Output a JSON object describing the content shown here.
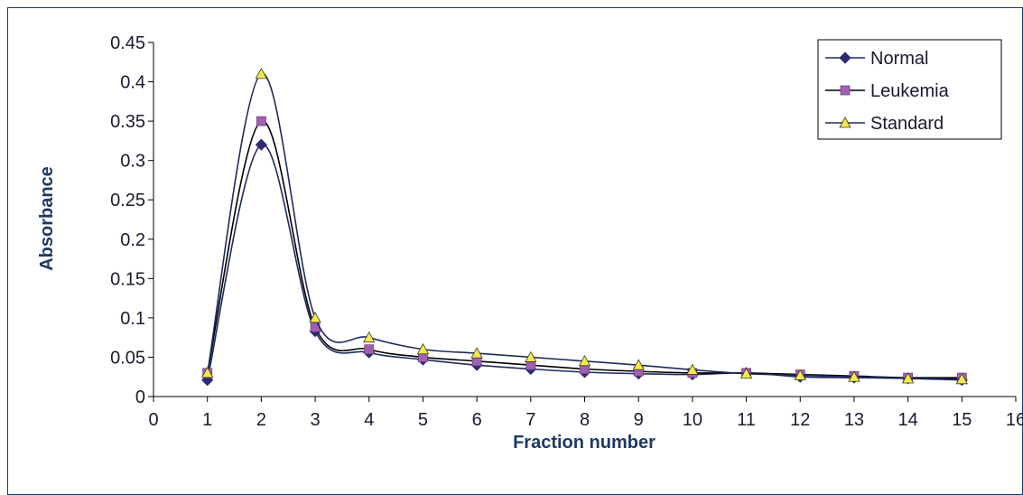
{
  "chart_data": {
    "type": "line",
    "title": "",
    "xlabel": "Fraction number",
    "ylabel": "Absorbance",
    "xlim": [
      0,
      16
    ],
    "ylim": [
      0,
      0.45
    ],
    "x_ticks": [
      0,
      1,
      2,
      3,
      4,
      5,
      6,
      7,
      8,
      9,
      10,
      11,
      12,
      13,
      14,
      15,
      16
    ],
    "y_ticks": [
      0,
      0.05,
      0.1,
      0.15,
      0.2,
      0.25,
      0.3,
      0.35,
      0.4,
      0.45
    ],
    "y_tick_labels": [
      "0",
      "0.05",
      "0.1",
      "0.15",
      "0.2",
      "0.25",
      "0.3",
      "0.35",
      "0.4",
      "0.45"
    ],
    "x_tick_labels": [
      "0",
      "1",
      "2",
      "3",
      "4",
      "5",
      "6",
      "7",
      "8",
      "9",
      "10",
      "11",
      "12",
      "13",
      "14",
      "15",
      "16"
    ],
    "grid": false,
    "legend_position": "top-right",
    "x": [
      1,
      2,
      3,
      4,
      5,
      6,
      7,
      8,
      9,
      10,
      11,
      12,
      13,
      14,
      15
    ],
    "series": [
      {
        "name": "Normal",
        "marker": "diamond",
        "marker_color": "#2e2a7a",
        "line_color": "#1f2a5c",
        "values": [
          0.021,
          0.32,
          0.083,
          0.056,
          0.047,
          0.04,
          0.035,
          0.031,
          0.029,
          0.028,
          0.03,
          0.025,
          0.024,
          0.023,
          0.021
        ]
      },
      {
        "name": "Leukemia",
        "marker": "square",
        "marker_color": "#a060b0",
        "line_color": "#000000",
        "values": [
          0.03,
          0.35,
          0.088,
          0.06,
          0.05,
          0.045,
          0.04,
          0.035,
          0.032,
          0.03,
          0.03,
          0.028,
          0.026,
          0.024,
          0.024
        ]
      },
      {
        "name": "Standard",
        "marker": "triangle",
        "marker_color": "#f2e94e",
        "line_color": "#1f2a5c",
        "values": [
          0.03,
          0.41,
          0.1,
          0.075,
          0.06,
          0.055,
          0.05,
          0.045,
          0.04,
          0.034,
          0.029,
          0.027,
          0.025,
          0.023,
          0.022
        ]
      }
    ]
  }
}
